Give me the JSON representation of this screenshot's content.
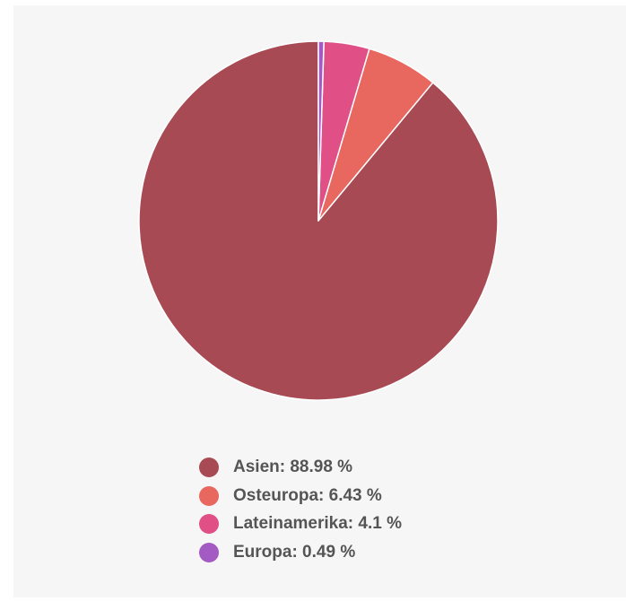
{
  "chart_data": {
    "type": "pie",
    "slices": [
      {
        "label": "Asien",
        "value": 88.98,
        "display": "Asien: 88.98 %",
        "color": "#a84a54"
      },
      {
        "label": "Osteuropa",
        "value": 6.43,
        "display": "Osteuropa: 6.43 %",
        "color": "#e8675f"
      },
      {
        "label": "Lateinamerika",
        "value": 4.1,
        "display": "Lateinamerika: 4.1 %",
        "color": "#e04f86"
      },
      {
        "label": "Europa",
        "value": 0.49,
        "display": "Europa: 0.49 %",
        "color": "#a35ac2"
      }
    ],
    "start_angle": "12 o'clock",
    "direction": "counterclockwise",
    "legend_position": "bottom-center"
  },
  "colors": {
    "panel_background": "#f6f6f6",
    "legend_text": "#555555",
    "slice_border": "#ffffff"
  }
}
